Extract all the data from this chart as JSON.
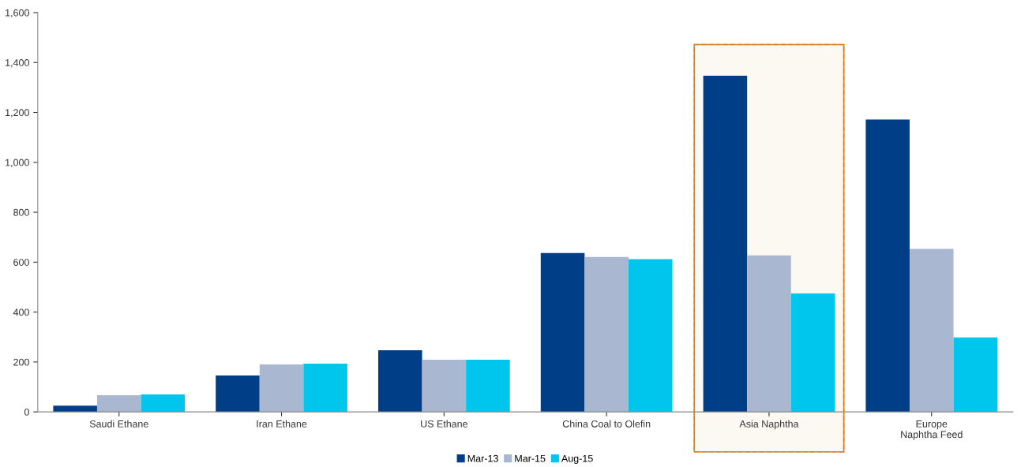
{
  "chart_data": {
    "type": "bar",
    "categories": [
      "Saudi Ethane",
      "Iran Ethane",
      "US Ethane",
      "China Coal to Olefin",
      "Asia Naphtha",
      "Europe\nNaphtha Feed"
    ],
    "series": [
      {
        "name": "Mar-13",
        "color": "#003f87",
        "values": [
          25,
          146,
          247,
          637,
          1347,
          1172
        ]
      },
      {
        "name": "Mar-15",
        "color": "#a9b8d0",
        "values": [
          67,
          190,
          209,
          621,
          627,
          653
        ]
      },
      {
        "name": "Aug-15",
        "color": "#00c6ee",
        "values": [
          70,
          193,
          209,
          612,
          475,
          298
        ]
      }
    ],
    "ylim": [
      0,
      1600
    ],
    "yticks": [
      {
        "value": 0,
        "label": "0"
      },
      {
        "value": 200,
        "label": "200"
      },
      {
        "value": 400,
        "label": "400"
      },
      {
        "value": 600,
        "label": "600"
      },
      {
        "value": 800,
        "label": "800"
      },
      {
        "value": 1000,
        "label": "1,000"
      },
      {
        "value": 1200,
        "label": "1,200"
      },
      {
        "value": 1400,
        "label": "1,400"
      },
      {
        "value": 1600,
        "label": "1,600"
      }
    ],
    "bands": [
      {
        "axis": "x",
        "from": "Asia Naphtha",
        "to": "Asia Naphtha",
        "color": "#d4822a"
      }
    ],
    "legend": "bottom",
    "grid": false
  }
}
